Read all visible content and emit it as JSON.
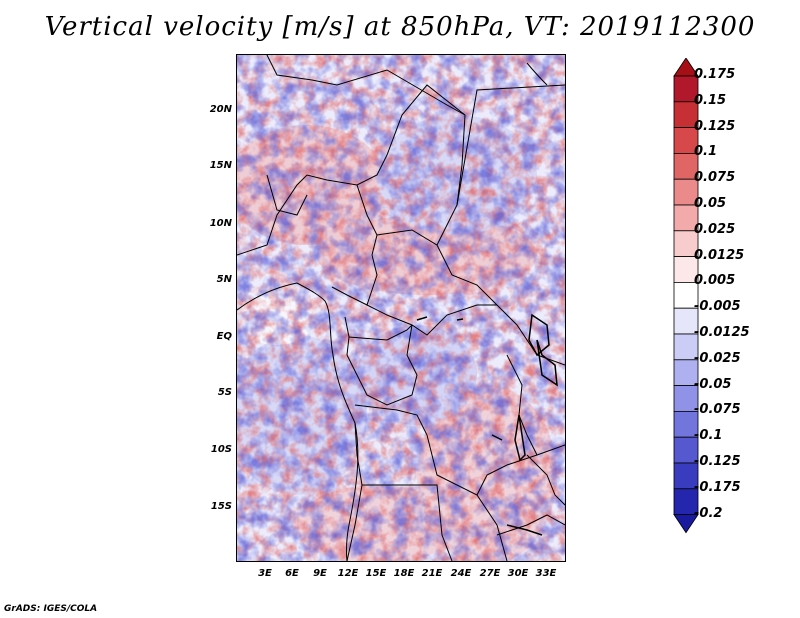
{
  "title": "Vertical velocity [m/s] at 850hPa, VT: 2019112300",
  "credit": "GrADS: IGES/COLA",
  "lat_labels": [
    "20N",
    "15N",
    "10N",
    "5N",
    "EQ",
    "5S",
    "10S",
    "15S"
  ],
  "lon_labels": [
    "3E",
    "6E",
    "9E",
    "12E",
    "15E",
    "18E",
    "21E",
    "24E",
    "27E",
    "30E",
    "33E"
  ],
  "colorbar": {
    "labels": [
      "0.175",
      "0.15",
      "0.125",
      "0.1",
      "0.075",
      "0.05",
      "0.025",
      "0.0125",
      "0.005",
      "-0.005",
      "-0.0125",
      "-0.025",
      "-0.05",
      "-0.075",
      "-0.1",
      "-0.125",
      "-0.175",
      "-0.2"
    ],
    "colors": [
      "#a50f15",
      "#b2182b",
      "#c62f33",
      "#d6484a",
      "#e06666",
      "#ea8a8a",
      "#f2aaaa",
      "#f8cccc",
      "#fce8e8",
      "#ffffff",
      "#e6e6fb",
      "#cccdf6",
      "#aeb0ef",
      "#8f92e6",
      "#7275dc",
      "#5558cf",
      "#3a3cc0",
      "#2426ae",
      "#1a1aa0"
    ]
  }
}
